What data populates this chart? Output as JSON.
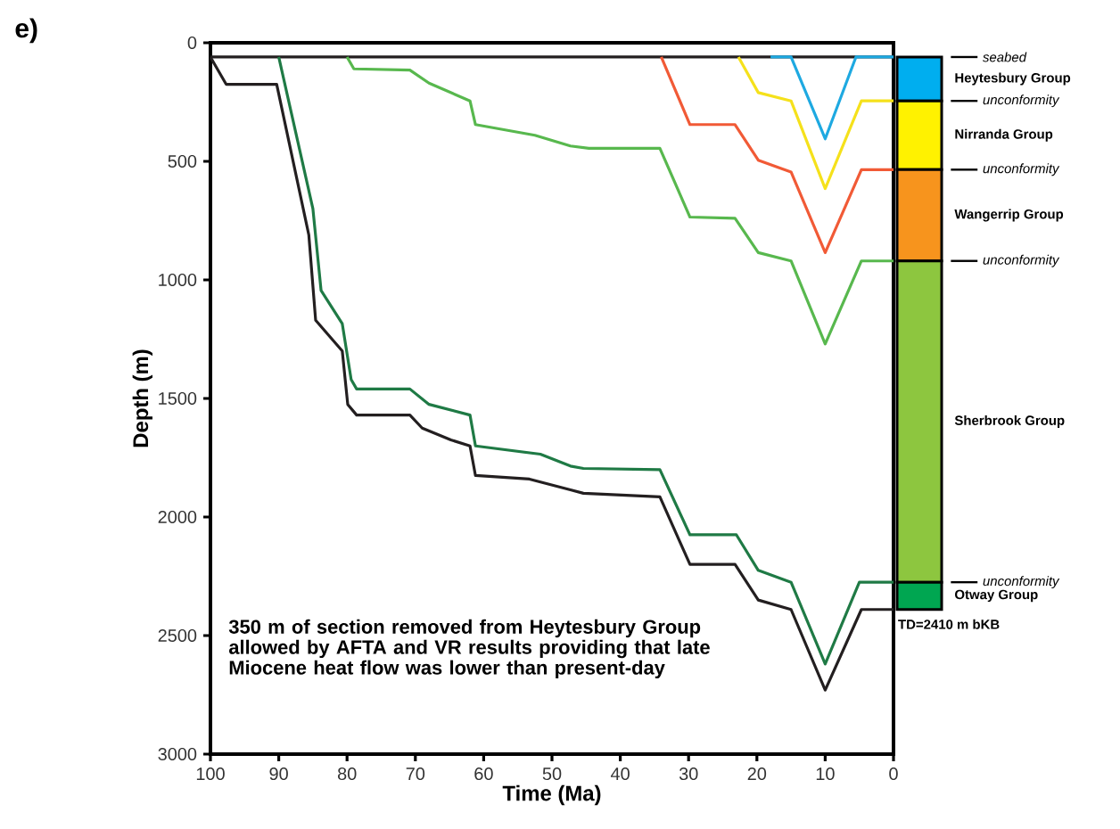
{
  "chart_data": {
    "type": "line",
    "title": "e)",
    "xlabel": "Time (Ma)",
    "ylabel": "Depth (m)",
    "xlim": [
      100,
      0
    ],
    "xticks": [
      100,
      90,
      80,
      70,
      60,
      50,
      40,
      30,
      20,
      10,
      0
    ],
    "ylim": [
      3000,
      0
    ],
    "yticks": [
      0,
      500,
      1000,
      1500,
      2000,
      2500,
      3000
    ],
    "series": [
      {
        "color": "#231f20",
        "x": [
          100,
          0
        ],
        "values": [
          60,
          60
        ]
      },
      {
        "color": "#1ea9e1",
        "x": [
          18,
          15,
          10,
          5.5,
          0
        ],
        "values": [
          60,
          60,
          405,
          60,
          60
        ]
      },
      {
        "color": "#f5e11b",
        "x": [
          22.7,
          19.8,
          15,
          10,
          4.7,
          0
        ],
        "values": [
          60,
          210,
          245,
          615,
          245,
          245
        ]
      },
      {
        "color": "#f15a36",
        "x": [
          34,
          29.8,
          23.2,
          19.8,
          15,
          10,
          4.7,
          0
        ],
        "values": [
          60,
          345,
          345,
          495,
          545,
          885,
          535,
          535
        ]
      },
      {
        "color": "#58b84e",
        "x": [
          80,
          79,
          70.8,
          68,
          62,
          61.2,
          52.5,
          47.3,
          44.6,
          34.2,
          29.8,
          23.2,
          19.8,
          15,
          10,
          4.7,
          0
        ],
        "values": [
          60,
          110,
          115,
          170,
          245,
          345,
          390,
          435,
          445,
          445,
          735,
          740,
          885,
          920,
          1270,
          920,
          920
        ]
      },
      {
        "color": "#1f7a45",
        "x": [
          90,
          85,
          83.8,
          80.7,
          79.4,
          78.6,
          70.8,
          68,
          62,
          61.2,
          51.7,
          47.3,
          45.4,
          34.2,
          29.8,
          23,
          19.8,
          15,
          10,
          5,
          0
        ],
        "values": [
          60,
          700,
          1045,
          1185,
          1420,
          1460,
          1460,
          1525,
          1570,
          1700,
          1735,
          1785,
          1795,
          1800,
          2075,
          2075,
          2225,
          2275,
          2620,
          2275,
          2275
        ]
      },
      {
        "color": "#231f20",
        "x": [
          100,
          97.7,
          90.3,
          85.6,
          84.6,
          80.7,
          79.9,
          78.6,
          70.8,
          69,
          64.8,
          62,
          61.2,
          53.3,
          47.3,
          45.4,
          34.2,
          29.8,
          23.2,
          19.8,
          15,
          10,
          4.7,
          0
        ],
        "values": [
          60,
          175,
          175,
          810,
          1170,
          1300,
          1525,
          1570,
          1570,
          1625,
          1675,
          1700,
          1825,
          1840,
          1885,
          1900,
          1915,
          2200,
          2200,
          2350,
          2390,
          2730,
          2390,
          2390
        ]
      }
    ],
    "ref_lines": [
      {
        "axis": "y",
        "value": 60,
        "label": "seabed"
      },
      {
        "axis": "y",
        "value": 245,
        "label": "unconformity"
      },
      {
        "axis": "y",
        "value": 535,
        "label": "unconformity"
      },
      {
        "axis": "y",
        "value": 920,
        "label": "unconformity"
      },
      {
        "axis": "y",
        "value": 2275,
        "label": "unconformity"
      }
    ],
    "annotations": [
      "350 m of section removed from Heytesbury Group allowed by AFTA and VR results providing that late Miocene heat flow was lower than present-day",
      "TD=2410 m bKB",
      "Heytesbury Group",
      "Nirranda Group",
      "Wangerrip Group",
      "Sherbrook Group",
      "Otway Group"
    ]
  }
}
